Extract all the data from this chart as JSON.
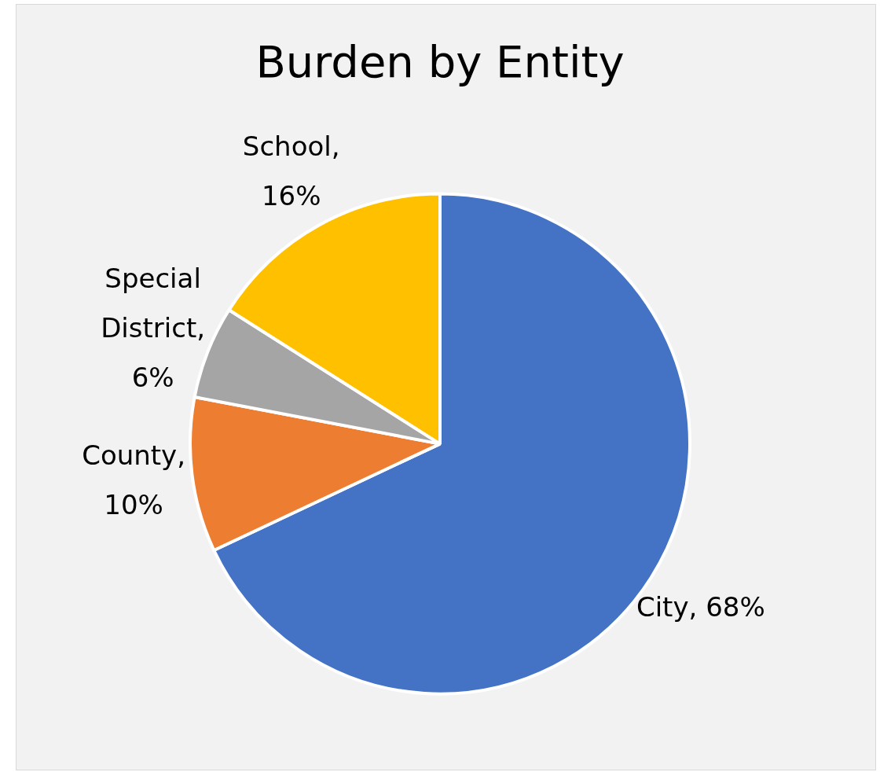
{
  "chart_data": {
    "type": "pie",
    "title": "Burden by Entity",
    "categories": [
      "City",
      "County",
      "Special District",
      "School"
    ],
    "values": [
      68,
      10,
      6,
      16
    ],
    "value_labels": [
      ", 68%",
      ", 10%",
      ", 6%",
      ", 16%"
    ],
    "colors": [
      "#4472c4",
      "#ed7d31",
      "#a5a5a5",
      "#ffc000"
    ],
    "legend": false
  }
}
